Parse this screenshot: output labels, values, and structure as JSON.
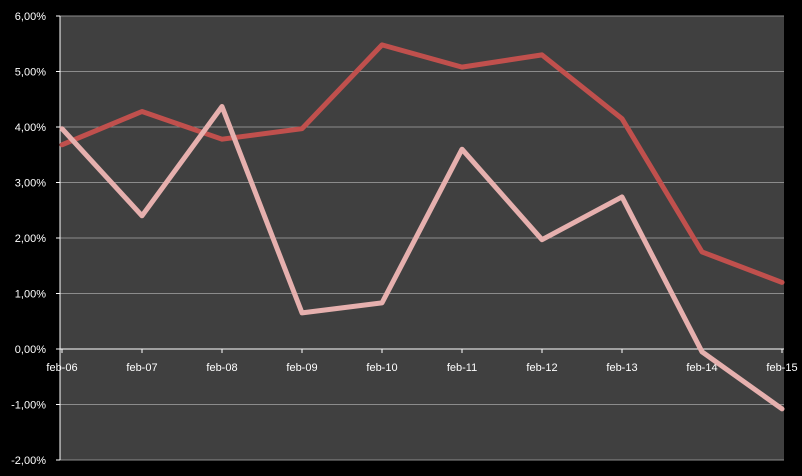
{
  "chart_data": {
    "type": "line",
    "categories": [
      "feb-06",
      "feb-07",
      "feb-08",
      "feb-09",
      "feb-10",
      "feb-11",
      "feb-12",
      "feb-13",
      "feb-14",
      "feb-15"
    ],
    "series": [
      {
        "values": [
          3.68,
          4.28,
          3.78,
          3.97,
          5.48,
          5.08,
          5.3,
          4.15,
          1.75,
          1.2
        ],
        "color": "#c0504d"
      },
      {
        "values": [
          3.97,
          2.4,
          4.37,
          0.65,
          0.83,
          3.6,
          1.97,
          2.74,
          -0.05,
          -1.08
        ],
        "color": "#e6b0ae"
      }
    ],
    "ylim": [
      -2,
      6
    ],
    "yticks": [
      "-2,00%",
      "-1,00%",
      "0,00%",
      "1,00%",
      "2,00%",
      "3,00%",
      "4,00%",
      "5,00%",
      "6,00%"
    ],
    "grid": true,
    "plot_background": "#404040",
    "page_background": "#000000",
    "gridline_color": "#8c8c8c",
    "axis_color": "#ffffff"
  }
}
